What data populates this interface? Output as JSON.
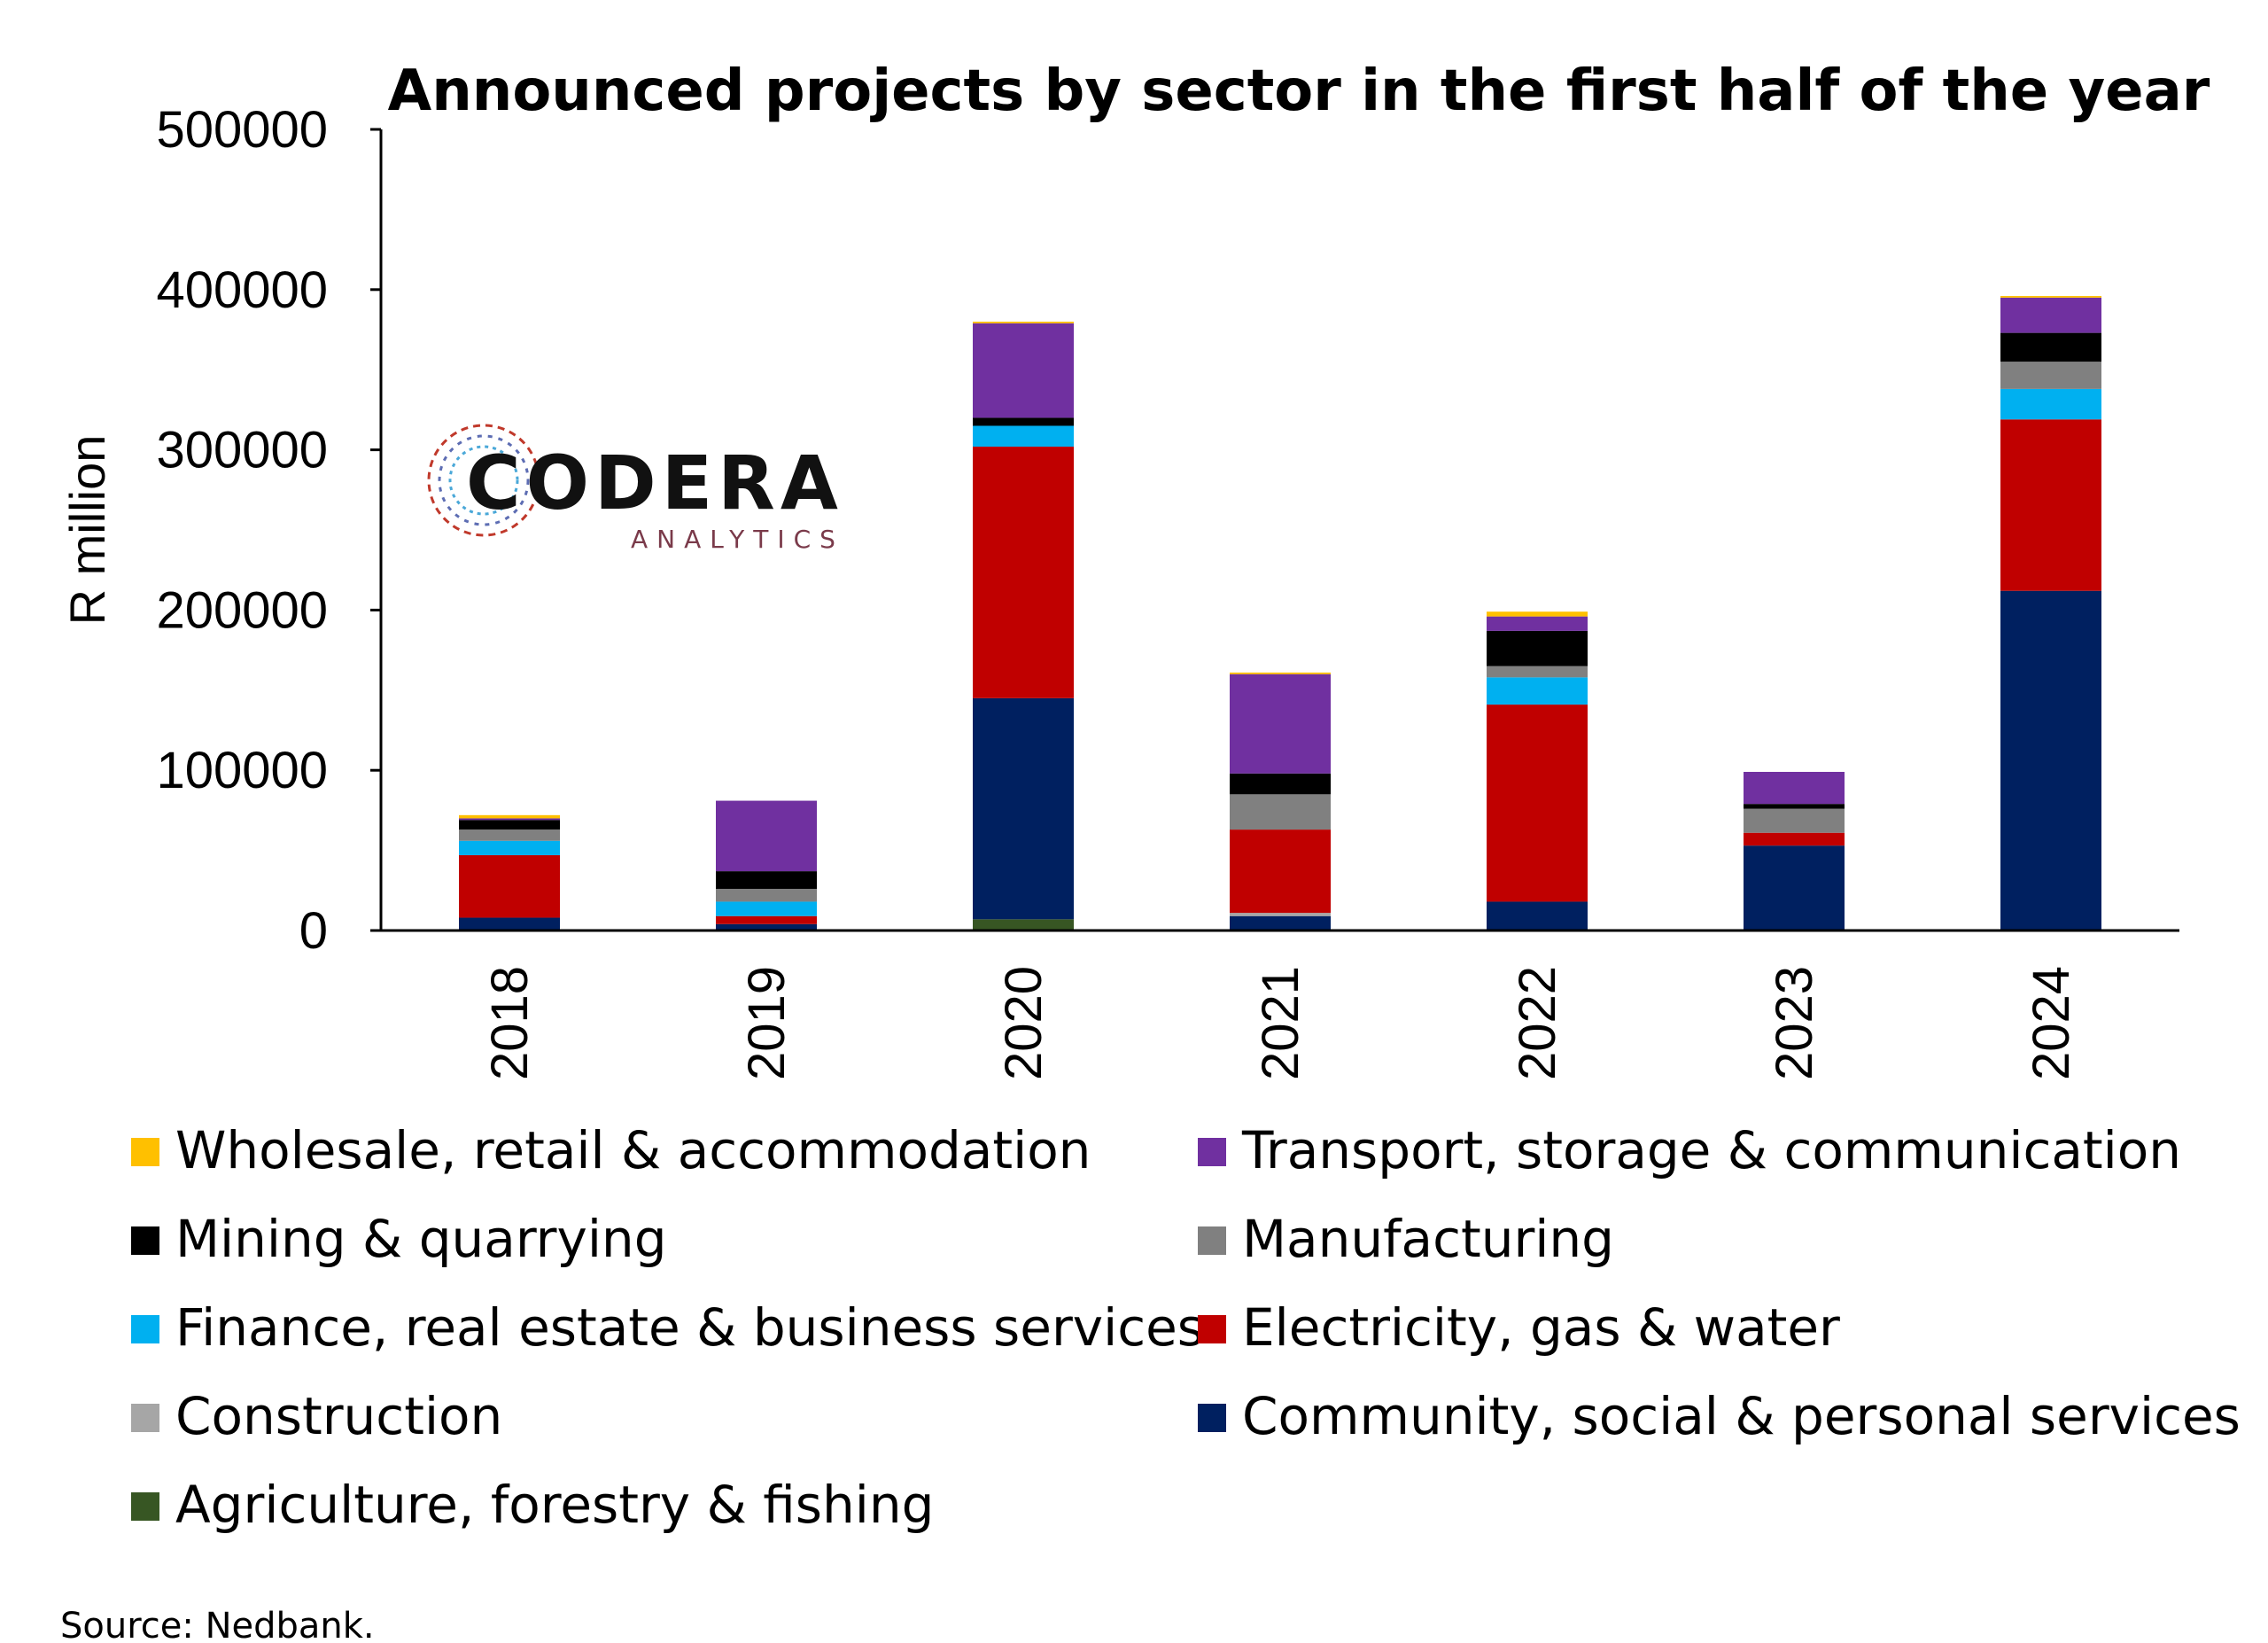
{
  "chart_data": {
    "type": "bar",
    "stacked": true,
    "title": "Announced projects by sector in the first half of the year",
    "xlabel": "",
    "ylabel": "R million",
    "ylim": [
      0,
      500000
    ],
    "yticks": [
      "0",
      "100000",
      "200000",
      "300000",
      "400000",
      "500000"
    ],
    "categories": [
      "2018",
      "2019",
      "2020",
      "2021",
      "2022",
      "2023",
      "2024"
    ],
    "series": [
      {
        "name": "Agriculture, forestry & fishing",
        "color": "#375623",
        "values": [
          0,
          0,
          7000,
          0,
          0,
          0,
          0
        ]
      },
      {
        "name": "Community, social & personal services",
        "color": "#002060",
        "values": [
          8000,
          4000,
          138000,
          9000,
          18000,
          53000,
          212000
        ]
      },
      {
        "name": "Construction",
        "color": "#a6a6a6",
        "values": [
          0,
          0,
          0,
          2000,
          0,
          0,
          0
        ]
      },
      {
        "name": "Electricity, gas & water",
        "color": "#c00000",
        "values": [
          39000,
          5000,
          157000,
          52000,
          123000,
          8000,
          107000
        ]
      },
      {
        "name": "Finance, real estate & business services",
        "color": "#00b0f0",
        "values": [
          9000,
          9000,
          13000,
          0,
          17000,
          0,
          19000
        ]
      },
      {
        "name": "Manufacturing",
        "color": "#808080",
        "values": [
          7000,
          8000,
          0,
          22000,
          7000,
          15000,
          17000
        ]
      },
      {
        "name": "Mining & quarrying",
        "color": "#000000",
        "values": [
          6000,
          11000,
          5000,
          13000,
          22000,
          3000,
          18000
        ]
      },
      {
        "name": "Transport, storage & communication",
        "color": "#7030a0",
        "values": [
          1000,
          44000,
          59000,
          62000,
          9000,
          20000,
          22000
        ]
      },
      {
        "name": "Wholesale, retail & accommodation",
        "color": "#ffc000",
        "values": [
          2000,
          0,
          1000,
          1000,
          3000,
          0,
          1000
        ]
      }
    ],
    "legend_order": [
      "Wholesale, retail & accommodation",
      "Transport, storage & communication",
      "Mining & quarrying",
      "Manufacturing",
      "Finance, real estate & business services",
      "Electricity, gas & water",
      "Construction",
      "Community, social & personal services",
      "Agriculture, forestry & fishing"
    ],
    "legend_position": "bottom",
    "grid": false
  },
  "logo": {
    "name": "CODERA",
    "subtitle": "ANALYTICS"
  },
  "source": "Source: Nedbank."
}
